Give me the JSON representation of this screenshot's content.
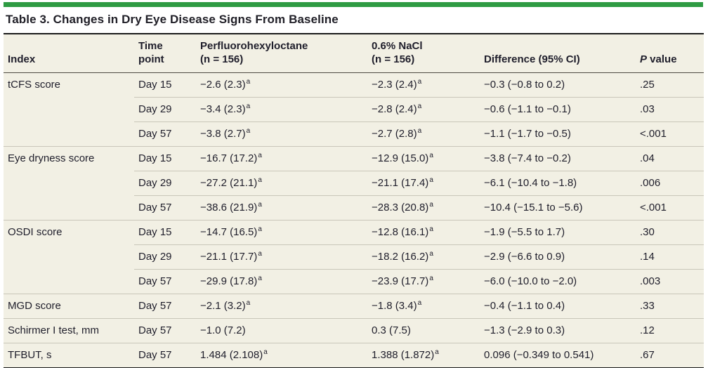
{
  "title": "Table 3. Changes in Dry Eye Disease Signs From Baseline",
  "colors": {
    "accent_green": "#2E9B43",
    "table_background": "#F2F0E4",
    "rule_dark": "#1A1A1A",
    "row_divider": "#C9C6B9",
    "text": "#1F1E2B"
  },
  "table": {
    "columns": [
      {
        "id": "index",
        "lines": [
          "Index"
        ]
      },
      {
        "id": "time",
        "lines": [
          "Time",
          "point"
        ]
      },
      {
        "id": "pfho",
        "lines": [
          "Perfluorohexyloctane",
          "(n = 156)"
        ]
      },
      {
        "id": "nacl",
        "lines": [
          "0.6% NaCl",
          "(n = 156)"
        ]
      },
      {
        "id": "diff",
        "lines": [
          "Difference (95% CI)"
        ]
      },
      {
        "id": "p",
        "lines": [
          "P value"
        ],
        "italic_prefix": "P",
        "rest": " value"
      }
    ],
    "rows": [
      {
        "group_start": true,
        "index": "tCFS score",
        "time": "Day 15",
        "pfho": "−2.6 (2.3)",
        "pfho_sup": "a",
        "nacl": "−2.3 (2.4)",
        "nacl_sup": "a",
        "diff": "−0.3 (−0.8 to 0.2)",
        "p": ".25"
      },
      {
        "group_start": false,
        "index": "",
        "time": "Day 29",
        "pfho": "−3.4 (2.3)",
        "pfho_sup": "a",
        "nacl": "−2.8 (2.4)",
        "nacl_sup": "a",
        "diff": "−0.6 (−1.1 to −0.1)",
        "p": ".03"
      },
      {
        "group_start": false,
        "index": "",
        "time": "Day 57",
        "pfho": "−3.8 (2.7)",
        "pfho_sup": "a",
        "nacl": "−2.7 (2.8)",
        "nacl_sup": "a",
        "diff": "−1.1 (−1.7 to −0.5)",
        "p": "<.001"
      },
      {
        "group_start": true,
        "index": "Eye dryness score",
        "time": "Day 15",
        "pfho": "−16.7 (17.2)",
        "pfho_sup": "a",
        "nacl": "−12.9 (15.0)",
        "nacl_sup": "a",
        "diff": "−3.8 (−7.4 to −0.2)",
        "p": ".04"
      },
      {
        "group_start": false,
        "index": "",
        "time": "Day 29",
        "pfho": "−27.2 (21.1)",
        "pfho_sup": "a",
        "nacl": "−21.1 (17.4)",
        "nacl_sup": "a",
        "diff": "−6.1 (−10.4 to −1.8)",
        "p": ".006"
      },
      {
        "group_start": false,
        "index": "",
        "time": "Day 57",
        "pfho": "−38.6 (21.9)",
        "pfho_sup": "a",
        "nacl": "−28.3 (20.8)",
        "nacl_sup": "a",
        "diff": "−10.4 (−15.1 to −5.6)",
        "p": "<.001"
      },
      {
        "group_start": true,
        "index": "OSDI score",
        "time": "Day 15",
        "pfho": "−14.7 (16.5)",
        "pfho_sup": "a",
        "nacl": "−12.8 (16.1)",
        "nacl_sup": "a",
        "diff": "−1.9 (−5.5 to 1.7)",
        "p": ".30"
      },
      {
        "group_start": false,
        "index": "",
        "time": "Day 29",
        "pfho": "−21.1 (17.7)",
        "pfho_sup": "a",
        "nacl": "−18.2 (16.2)",
        "nacl_sup": "a",
        "diff": "−2.9 (−6.6 to 0.9)",
        "p": ".14"
      },
      {
        "group_start": false,
        "index": "",
        "time": "Day 57",
        "pfho": "−29.9 (17.8)",
        "pfho_sup": "a",
        "nacl": "−23.9 (17.7)",
        "nacl_sup": "a",
        "diff": "−6.0 (−10.0 to −2.0)",
        "p": ".003"
      },
      {
        "group_start": true,
        "index": "MGD score",
        "time": "Day 57",
        "pfho": "−2.1 (3.2)",
        "pfho_sup": "a",
        "nacl": "−1.8 (3.4)",
        "nacl_sup": "a",
        "diff": "−0.4 (−1.1 to 0.4)",
        "p": ".33"
      },
      {
        "group_start": true,
        "index": "Schirmer I test, mm",
        "time": "Day 57",
        "pfho": "−1.0 (7.2)",
        "pfho_sup": "",
        "nacl": "0.3 (7.5)",
        "nacl_sup": "",
        "diff": "−1.3 (−2.9 to 0.3)",
        "p": ".12"
      },
      {
        "group_start": true,
        "index": "TFBUT, s",
        "time": "Day 57",
        "pfho": "1.484 (2.108)",
        "pfho_sup": "a",
        "nacl": "1.388 (1.872)",
        "nacl_sup": "a",
        "diff": "0.096 (−0.349 to 0.541)",
        "p": ".67"
      }
    ]
  }
}
